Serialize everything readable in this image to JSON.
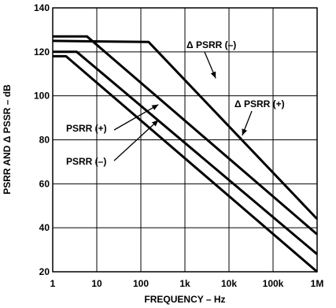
{
  "chart_data": {
    "type": "line",
    "xscale": "log",
    "grid": true,
    "xlabel": "FREQUENCY – Hz",
    "ylabel": "PSRR AND Δ PSSR – dB",
    "xlim": [
      1,
      1000000
    ],
    "ylim": [
      20,
      140
    ],
    "xticks": [
      {
        "value": 1,
        "label": "1"
      },
      {
        "value": 10,
        "label": "10"
      },
      {
        "value": 100,
        "label": "100"
      },
      {
        "value": 1000,
        "label": "1k"
      },
      {
        "value": 10000,
        "label": "10k"
      },
      {
        "value": 100000,
        "label": "100k"
      },
      {
        "value": 1000000,
        "label": "1M"
      }
    ],
    "yticks": [
      {
        "value": 20,
        "label": "20"
      },
      {
        "value": 40,
        "label": "40"
      },
      {
        "value": 60,
        "label": "60"
      },
      {
        "value": 80,
        "label": "80"
      },
      {
        "value": 100,
        "label": "100"
      },
      {
        "value": 120,
        "label": "120"
      },
      {
        "value": 140,
        "label": "140"
      }
    ],
    "series": [
      {
        "name": "Δ PSRR (–)",
        "x": [
          1,
          150,
          1000000
        ],
        "y": [
          125,
          124.5,
          44
        ]
      },
      {
        "name": "Δ PSRR (+)",
        "x": [
          1,
          6,
          1000000
        ],
        "y": [
          127,
          127,
          37
        ]
      },
      {
        "name": "PSRR (+)",
        "x": [
          1,
          3.5,
          1000000
        ],
        "y": [
          120,
          120,
          28
        ]
      },
      {
        "name": "PSRR (–)",
        "x": [
          1,
          2,
          1000000
        ],
        "y": [
          118,
          118,
          20
        ]
      }
    ],
    "annotations": [
      {
        "text": "Δ PSRR (–)",
        "series": 0,
        "arrow_to": {
          "x": 5000,
          "y": 108
        }
      },
      {
        "text": "Δ PSRR (+)",
        "series": 1,
        "arrow_to": {
          "x": 20000,
          "y": 82
        }
      },
      {
        "text": "PSRR (+)",
        "series": 2,
        "arrow_to": {
          "x": 250,
          "y": 96
        }
      },
      {
        "text": "PSRR (–)",
        "series": 3,
        "arrow_to": {
          "x": 250,
          "y": 89
        }
      }
    ]
  }
}
